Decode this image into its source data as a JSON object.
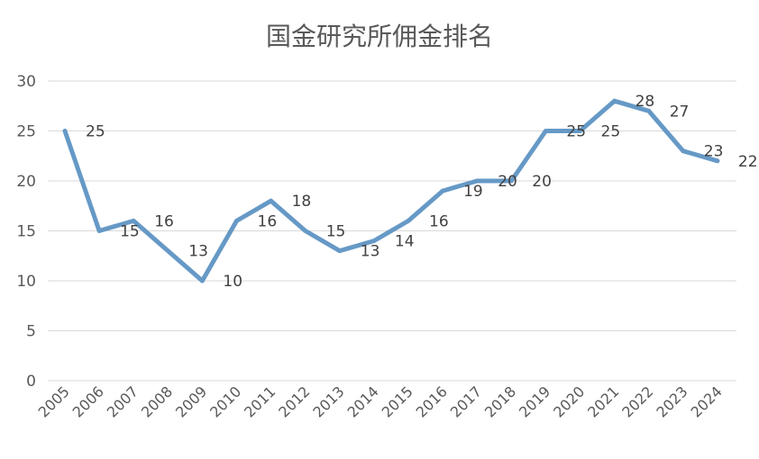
{
  "chart_data": {
    "type": "line",
    "title": "国金研究所佣金排名",
    "xlabel": "",
    "ylabel": "",
    "ylim": [
      0,
      30
    ],
    "yticks": [
      0,
      5,
      10,
      15,
      20,
      25,
      30
    ],
    "grid": true,
    "legend": "none",
    "categories": [
      "2005",
      "2006",
      "2007",
      "2008",
      "2009",
      "2010",
      "2011",
      "2012",
      "2013",
      "2014",
      "2015",
      "2016",
      "2017",
      "2018",
      "2019",
      "2020",
      "2021",
      "2022",
      "2023",
      "2024"
    ],
    "series": [
      {
        "color": "#6699c6",
        "values": [
          25,
          15,
          16,
          13,
          10,
          16,
          18,
          15,
          13,
          14,
          16,
          19,
          20,
          20,
          25,
          25,
          28,
          27,
          23,
          22
        ]
      }
    ]
  }
}
